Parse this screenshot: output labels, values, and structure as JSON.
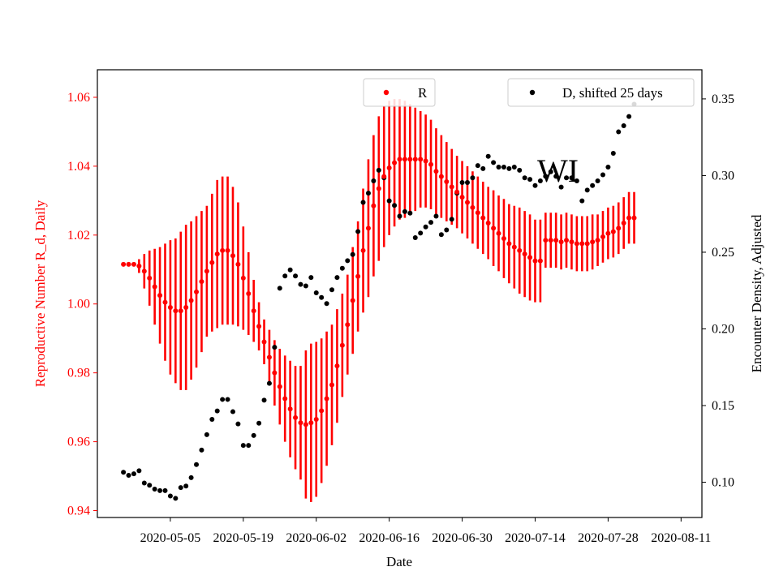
{
  "chart_data": {
    "type": "scatter",
    "xlabel": "Date",
    "ylabel_left": "Reproductive Number R_d, Daily",
    "ylabel_right": "Encounter Density, Adjusted",
    "annotation": "WI",
    "xlim": [
      "2020-04-21",
      "2020-08-15"
    ],
    "ylim_left": [
      0.938,
      1.068
    ],
    "ylim_right": [
      0.077,
      0.369
    ],
    "x_ticks": [
      "2020-05-05",
      "2020-05-19",
      "2020-06-02",
      "2020-06-16",
      "2020-06-30",
      "2020-07-14",
      "2020-07-28",
      "2020-08-11"
    ],
    "y_ticks_left": [
      "0.94",
      "0.96",
      "0.98",
      "1.00",
      "1.02",
      "1.04",
      "1.06"
    ],
    "y_ticks_right": [
      "0.10",
      "0.15",
      "0.20",
      "0.25",
      "0.30",
      "0.35"
    ],
    "colors": {
      "R": "#ff0000",
      "D": "#000000",
      "left_axis": "#ff0000",
      "right_axis": "#000000"
    },
    "legend": {
      "left_label": "R",
      "right_label": "D, shifted 25 days",
      "left_position": "upper-center",
      "right_position": "upper-right"
    },
    "series_R": {
      "name": "R",
      "start_date": "2020-04-26",
      "values": [
        1.0115,
        1.0115,
        1.0115,
        1.011,
        1.0095,
        1.0075,
        1.005,
        1.0025,
        1.0005,
        0.999,
        0.998,
        0.998,
        0.999,
        1.001,
        1.0035,
        1.0065,
        1.0095,
        1.012,
        1.0145,
        1.0155,
        1.0155,
        1.014,
        1.0115,
        1.0075,
        1.003,
        0.998,
        0.9935,
        0.989,
        0.9845,
        0.98,
        0.976,
        0.9725,
        0.9695,
        0.967,
        0.9655,
        0.965,
        0.9655,
        0.9665,
        0.969,
        0.9725,
        0.9765,
        0.982,
        0.988,
        0.994,
        1.001,
        1.008,
        1.0155,
        1.022,
        1.0285,
        1.0335,
        1.037,
        1.0395,
        1.041,
        1.042,
        1.042,
        1.042,
        1.042,
        1.042,
        1.0415,
        1.0405,
        1.0385,
        1.037,
        1.0355,
        1.034,
        1.0325,
        1.031,
        1.0295,
        1.028,
        1.0265,
        1.025,
        1.0235,
        1.022,
        1.0205,
        1.019,
        1.0175,
        1.0165,
        1.0155,
        1.0145,
        1.0135,
        1.0125,
        1.0125,
        1.0185,
        1.0185,
        1.0185,
        1.018,
        1.0185,
        1.018,
        1.0175,
        1.0175,
        1.0175,
        1.018,
        1.0185,
        1.0195,
        1.0205,
        1.021,
        1.022,
        1.0235,
        1.025,
        1.025
      ],
      "err": [
        0.0005,
        0.0005,
        0.0005,
        0.002,
        0.005,
        0.008,
        0.011,
        0.014,
        0.017,
        0.0195,
        0.021,
        0.023,
        0.024,
        0.023,
        0.022,
        0.0205,
        0.019,
        0.02,
        0.0215,
        0.0215,
        0.0215,
        0.02,
        0.018,
        0.015,
        0.012,
        0.009,
        0.007,
        0.0065,
        0.008,
        0.0095,
        0.011,
        0.0125,
        0.014,
        0.015,
        0.0165,
        0.0215,
        0.023,
        0.0225,
        0.021,
        0.0195,
        0.0175,
        0.0165,
        0.015,
        0.0145,
        0.0155,
        0.016,
        0.018,
        0.02,
        0.0205,
        0.021,
        0.0205,
        0.0195,
        0.0185,
        0.0175,
        0.017,
        0.016,
        0.015,
        0.014,
        0.0135,
        0.013,
        0.0125,
        0.012,
        0.0115,
        0.011,
        0.0105,
        0.0105,
        0.0105,
        0.0105,
        0.0105,
        0.0105,
        0.0105,
        0.011,
        0.011,
        0.0115,
        0.0115,
        0.012,
        0.0125,
        0.0125,
        0.0125,
        0.012,
        0.012,
        0.008,
        0.008,
        0.008,
        0.008,
        0.008,
        0.008,
        0.008,
        0.008,
        0.008,
        0.008,
        0.0075,
        0.0075,
        0.0075,
        0.0075,
        0.0075,
        0.0075,
        0.0075,
        0.0075
      ]
    },
    "series_D": {
      "name": "D, shifted 25 days",
      "start_date": "2020-04-26",
      "values": [
        0.1065,
        0.1045,
        0.1055,
        0.1075,
        0.0995,
        0.098,
        0.0955,
        0.0945,
        0.0945,
        0.091,
        0.0895,
        0.0965,
        0.0975,
        0.103,
        0.1115,
        0.121,
        0.131,
        0.141,
        0.1465,
        0.154,
        0.154,
        0.146,
        0.138,
        0.124,
        0.124,
        0.1305,
        0.1385,
        0.1535,
        0.1645,
        0.188,
        0.2265,
        0.2345,
        0.2385,
        0.2345,
        0.229,
        0.228,
        0.2335,
        0.2235,
        0.2205,
        0.2165,
        0.2255,
        0.2335,
        0.2395,
        0.2445,
        0.2485,
        0.2635,
        0.2825,
        0.2885,
        0.2965,
        0.3035,
        0.2985,
        0.2835,
        0.2805,
        0.2735,
        0.2765,
        0.2755,
        0.2595,
        0.2625,
        0.2665,
        0.2695,
        0.2735,
        0.2615,
        0.2645,
        0.2715,
        0.2885,
        0.2955,
        0.2955,
        0.2985,
        0.3065,
        0.3045,
        0.3125,
        0.3085,
        0.3055,
        0.3055,
        0.3045,
        0.3055,
        0.3035,
        0.2985,
        0.2975,
        0.2935,
        0.2965,
        0.2995,
        0.3025,
        0.2995,
        0.2925,
        0.2985,
        0.2985,
        0.2965,
        0.2835,
        0.2905,
        0.2935,
        0.2965,
        0.3005,
        0.3055,
        0.3145,
        0.3285,
        0.3325,
        0.3385,
        0.3465
      ]
    }
  }
}
